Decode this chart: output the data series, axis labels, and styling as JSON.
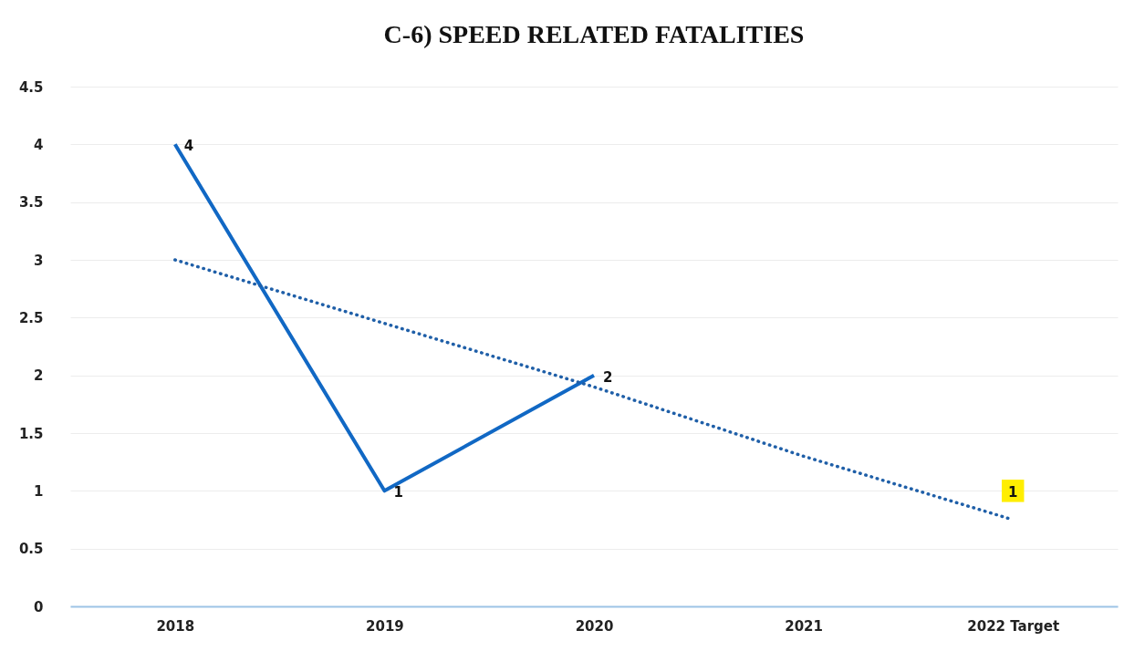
{
  "chart_data": {
    "type": "line",
    "title": "C-6) SPEED RELATED FATALITIES",
    "categories": [
      "2018",
      "2019",
      "2020",
      "2021",
      "2022 Target"
    ],
    "series": [
      {
        "color": "#1168c4",
        "values": [
          4,
          1,
          2,
          null,
          null
        ],
        "value_labels": [
          "4",
          "1",
          "2",
          null,
          null
        ]
      },
      {
        "type": "scatter",
        "color": "#ffee00",
        "marker": "square",
        "values": [
          null,
          null,
          null,
          null,
          1
        ],
        "value_labels": [
          null,
          null,
          null,
          null,
          "1"
        ]
      },
      {
        "type": "line",
        "color": "#1f5fa8",
        "line_style": "dotted",
        "values": [
          3,
          2.45,
          1.9,
          1.3,
          0.75
        ]
      }
    ],
    "ylim": [
      0,
      4.5
    ],
    "yticks": [
      0,
      0.5,
      1,
      1.5,
      2,
      2.5,
      3,
      3.5,
      4,
      4.5
    ],
    "grid": "y"
  }
}
